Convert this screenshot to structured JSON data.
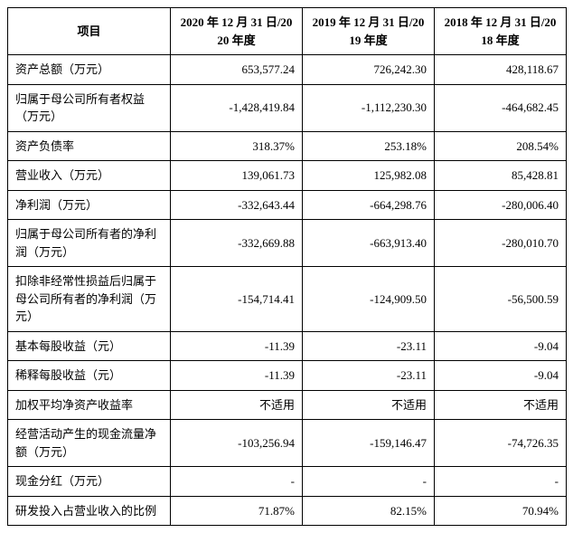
{
  "table": {
    "columns": [
      "项目",
      "2020 年 12 月 31 日/2020 年度",
      "2019 年 12 月 31 日/2019 年度",
      "2018 年 12 月 31 日/2018 年度"
    ],
    "rows": [
      {
        "label": "资产总额（万元）",
        "v": [
          "653,577.24",
          "726,242.30",
          "428,118.67"
        ]
      },
      {
        "label": "归属于母公司所有者权益（万元）",
        "v": [
          "-1,428,419.84",
          "-1,112,230.30",
          "-464,682.45"
        ]
      },
      {
        "label": "资产负债率",
        "v": [
          "318.37%",
          "253.18%",
          "208.54%"
        ]
      },
      {
        "label": "营业收入（万元）",
        "v": [
          "139,061.73",
          "125,982.08",
          "85,428.81"
        ]
      },
      {
        "label": "净利润（万元）",
        "v": [
          "-332,643.44",
          "-664,298.76",
          "-280,006.40"
        ]
      },
      {
        "label": "归属于母公司所有者的净利润（万元）",
        "v": [
          "-332,669.88",
          "-663,913.40",
          "-280,010.70"
        ]
      },
      {
        "label": "扣除非经常性损益后归属于母公司所有者的净利润（万元）",
        "v": [
          "-154,714.41",
          "-124,909.50",
          "-56,500.59"
        ]
      },
      {
        "label": "基本每股收益（元）",
        "v": [
          "-11.39",
          "-23.11",
          "-9.04"
        ]
      },
      {
        "label": "稀释每股收益（元）",
        "v": [
          "-11.39",
          "-23.11",
          "-9.04"
        ]
      },
      {
        "label": "加权平均净资产收益率",
        "v": [
          "不适用",
          "不适用",
          "不适用"
        ]
      },
      {
        "label": "经营活动产生的现金流量净额（万元）",
        "v": [
          "-103,256.94",
          "-159,146.47",
          "-74,726.35"
        ]
      },
      {
        "label": "现金分红（万元）",
        "v": [
          "-",
          "-",
          "-"
        ]
      },
      {
        "label": "研发投入占营业收入的比例",
        "v": [
          "71.87%",
          "82.15%",
          "70.94%"
        ]
      }
    ],
    "border_color": "#000000",
    "background_color": "#ffffff",
    "font_size": 13
  }
}
